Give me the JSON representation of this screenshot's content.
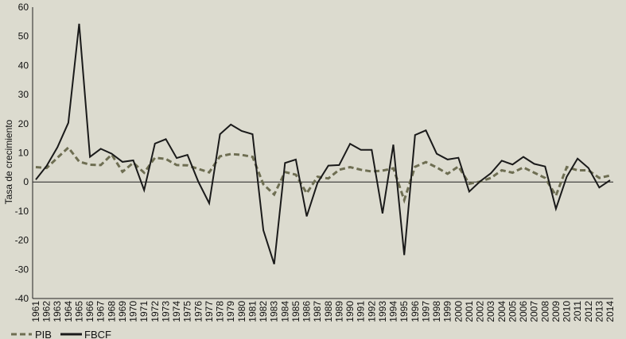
{
  "chart_data": {
    "type": "line",
    "title": "",
    "xlabel": "",
    "ylabel": "Tasa de crecimiento",
    "ylim": [
      -40,
      60
    ],
    "yticks": [
      -40,
      -30,
      -20,
      -10,
      0,
      10,
      20,
      30,
      40,
      50,
      60
    ],
    "grid": false,
    "legend_position": "bottom-left",
    "categories": [
      "1961",
      "1962",
      "1963",
      "1964",
      "1965",
      "1966",
      "1967",
      "1968",
      "1969",
      "1970",
      "1971",
      "1972",
      "1973",
      "1974",
      "1975",
      "1976",
      "1977",
      "1978",
      "1979",
      "1980",
      "1981",
      "1982",
      "1983",
      "1984",
      "1985",
      "1986",
      "1987",
      "1988",
      "1989",
      "1990",
      "1991",
      "1992",
      "1993",
      "1994",
      "1995",
      "1996",
      "1997",
      "1998",
      "1999",
      "2000",
      "2001",
      "2002",
      "2003",
      "2004",
      "2005",
      "2006",
      "2007",
      "2008",
      "2009",
      "2010",
      "2011",
      "2012",
      "2013",
      "2014"
    ],
    "series": [
      {
        "name": "PIB",
        "style": "dashed",
        "color": "#6e6e52",
        "values": [
          5.1,
          4.8,
          8.3,
          11.8,
          7.0,
          5.9,
          5.8,
          9.4,
          3.5,
          6.6,
          3.2,
          8.3,
          7.9,
          5.8,
          5.7,
          4.5,
          3.3,
          8.8,
          9.6,
          9.3,
          8.6,
          -0.8,
          -4.3,
          3.4,
          2.5,
          -3.9,
          1.8,
          1.2,
          4.2,
          5.1,
          4.2,
          3.6,
          3.9,
          4.7,
          -6.2,
          5.2,
          6.8,
          5.0,
          2.8,
          5.3,
          -0.6,
          0.1,
          1.4,
          4.0,
          3.2,
          5.0,
          3.2,
          1.4,
          -4.7,
          5.1,
          4.0,
          4.0,
          1.4,
          2.2
        ]
      },
      {
        "name": "FBCF",
        "style": "solid",
        "color": "#1a1a1a",
        "values": [
          0.8,
          5.5,
          11.9,
          20.3,
          54.3,
          8.6,
          11.4,
          9.7,
          6.9,
          7.4,
          -2.8,
          13.2,
          14.7,
          8.2,
          9.3,
          0.1,
          -7.3,
          16.4,
          19.7,
          17.5,
          16.4,
          -16.6,
          -28.2,
          6.5,
          7.7,
          -11.8,
          -0.3,
          5.6,
          5.8,
          13.1,
          11.0,
          11.0,
          -10.8,
          12.8,
          -25.1,
          16.1,
          17.7,
          9.7,
          7.7,
          8.3,
          -3.3,
          0.2,
          3.0,
          7.3,
          6.0,
          8.6,
          6.2,
          5.3,
          -9.2,
          1.8,
          8.0,
          4.8,
          -1.9,
          0.6
        ]
      }
    ]
  }
}
